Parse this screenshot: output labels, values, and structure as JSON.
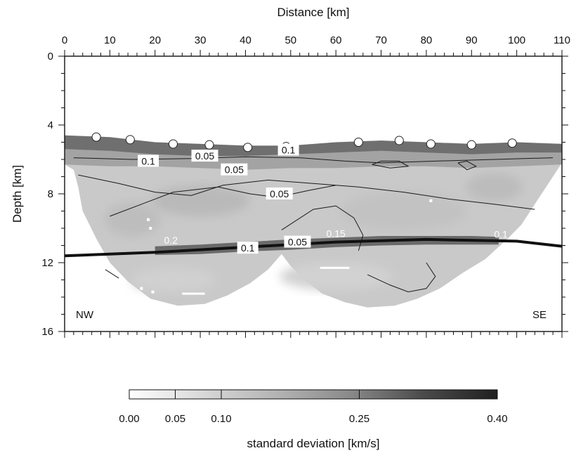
{
  "chart_data": {
    "type": "heatmap",
    "title": "",
    "xlabel": "Distance [km]",
    "ylabel": "Depth [km]",
    "xlim": [
      0,
      110
    ],
    "ylim": [
      0,
      16
    ],
    "x_ticks": [
      0,
      10,
      20,
      30,
      40,
      50,
      60,
      70,
      80,
      90,
      100,
      110
    ],
    "y_ticks": [
      0,
      4,
      8,
      12,
      16
    ],
    "y_inverted": true,
    "grid": false,
    "left_label": "NW",
    "right_label": "SE",
    "colorbar": {
      "label": "standard deviation [km/s]",
      "range": [
        0,
        0.4
      ],
      "ticks": [
        "0.00",
        "0.05",
        "0.10",
        "0.25",
        "0.40"
      ],
      "tick_values": [
        0,
        0.05,
        0.1,
        0.25,
        0.4
      ],
      "colors": [
        "#ffffff",
        "#d8d8d8",
        "#b4b4b4",
        "#8a8a8a",
        "#4a4a4a",
        "#202020"
      ]
    },
    "surface_markers": [
      {
        "x": 7,
        "y": 4.7
      },
      {
        "x": 14.5,
        "y": 4.85
      },
      {
        "x": 24,
        "y": 5.1
      },
      {
        "x": 32,
        "y": 5.15
      },
      {
        "x": 40.5,
        "y": 5.3
      },
      {
        "x": 49,
        "y": 5.25
      },
      {
        "x": 65,
        "y": 5.0
      },
      {
        "x": 74,
        "y": 4.9
      },
      {
        "x": 81,
        "y": 5.1
      },
      {
        "x": 90,
        "y": 5.15
      },
      {
        "x": 99,
        "y": 5.05
      }
    ],
    "reflector_line": [
      {
        "x": 0,
        "y": 11.6
      },
      {
        "x": 20,
        "y": 11.4
      },
      {
        "x": 40,
        "y": 11.1
      },
      {
        "x": 60,
        "y": 10.8
      },
      {
        "x": 80,
        "y": 10.65
      },
      {
        "x": 100,
        "y": 10.75
      },
      {
        "x": 110,
        "y": 11.05
      }
    ],
    "contour_labels": [
      {
        "text": "0.1",
        "x": 18.5,
        "y": 6.1,
        "style": "dark"
      },
      {
        "text": "0.05",
        "x": 31,
        "y": 5.8,
        "style": "dark"
      },
      {
        "text": "0.1",
        "x": 49.5,
        "y": 5.45,
        "style": "dark"
      },
      {
        "text": "0.05",
        "x": 37.5,
        "y": 6.6,
        "style": "dark"
      },
      {
        "text": "0.05",
        "x": 47.5,
        "y": 8.0,
        "style": "dark"
      },
      {
        "text": "0.2",
        "x": 23.5,
        "y": 10.7,
        "style": "light"
      },
      {
        "text": "0.1",
        "x": 40.5,
        "y": 11.15,
        "style": "dark"
      },
      {
        "text": "0.05",
        "x": 51.5,
        "y": 10.8,
        "style": "dark"
      },
      {
        "text": "0.15",
        "x": 60,
        "y": 10.3,
        "style": "light"
      },
      {
        "text": "0.1",
        "x": 96.5,
        "y": 10.35,
        "style": "light"
      }
    ]
  }
}
